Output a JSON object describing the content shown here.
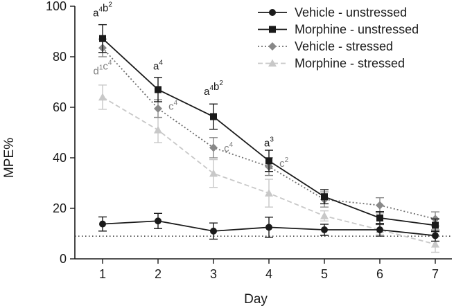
{
  "chart_data": {
    "type": "line",
    "title": "",
    "xlabel": "Day",
    "ylabel": "MPE%",
    "x": [
      1,
      2,
      3,
      4,
      5,
      6,
      7
    ],
    "xlim": [
      0.5,
      7.3
    ],
    "ylim": [
      0,
      100
    ],
    "yticks": [
      0,
      20,
      40,
      60,
      80,
      100
    ],
    "grid": false,
    "legend_position": "top-right",
    "reference_line": {
      "y": 9,
      "style": "dotted",
      "color": "#1a1a1a"
    },
    "series": [
      {
        "name": "Vehicle - unstressed",
        "marker": "circle",
        "dash": "solid",
        "color": "#1a1a1a",
        "marker_color": "#1a1a1a",
        "values": [
          13.8,
          15.0,
          11.0,
          12.5,
          11.5,
          11.5,
          9.2
        ],
        "errors": [
          2.8,
          3.0,
          3.2,
          4.0,
          2.2,
          2.5,
          2.2
        ]
      },
      {
        "name": "Morphine - unstressed",
        "marker": "square",
        "dash": "solid",
        "color": "#1a1a1a",
        "marker_color": "#1a1a1a",
        "values": [
          87.2,
          67.0,
          56.3,
          38.8,
          24.6,
          16.2,
          13.3
        ],
        "errors": [
          5.5,
          4.8,
          5.0,
          4.2,
          2.8,
          2.5,
          2.5
        ]
      },
      {
        "name": "Vehicle - stressed",
        "marker": "diamond",
        "dash": "dotted",
        "color": "#707070",
        "marker_color": "#888888",
        "values": [
          83.5,
          59.5,
          44.0,
          36.5,
          23.5,
          21.2,
          15.8
        ],
        "errors": [
          3.5,
          3.5,
          4.0,
          3.5,
          3.0,
          3.0,
          2.8
        ]
      },
      {
        "name": "Morphine - stressed",
        "marker": "triangle",
        "dash": "dashed",
        "color": "#c8c8c8",
        "marker_color": "#c8c8c8",
        "values": [
          64.0,
          51.0,
          33.8,
          26.0,
          17.0,
          11.5,
          5.8
        ],
        "errors": [
          4.8,
          5.0,
          5.5,
          5.5,
          2.0,
          2.0,
          3.2
        ]
      }
    ],
    "annotations": [
      {
        "x": 1,
        "y": 96,
        "color": "#1a1a1a",
        "parts": [
          [
            "a",
            "4"
          ],
          [
            "b",
            "2"
          ]
        ]
      },
      {
        "x": 2,
        "y": 75,
        "color": "#1a1a1a",
        "parts": [
          [
            "a",
            "4"
          ]
        ]
      },
      {
        "x": 3,
        "y": 65,
        "color": "#1a1a1a",
        "parts": [
          [
            "a",
            "4"
          ],
          [
            "b",
            "2"
          ]
        ]
      },
      {
        "x": 4,
        "y": 44.5,
        "color": "#1a1a1a",
        "parts": [
          [
            "a",
            "3"
          ]
        ]
      },
      {
        "x": 1,
        "y": 73,
        "color": "#808080",
        "parts": [
          [
            "d",
            "1"
          ],
          [
            "c",
            "4"
          ]
        ]
      },
      {
        "x": 2.27,
        "y": 59,
        "color": "#808080",
        "parts": [
          [
            "c",
            "4"
          ]
        ]
      },
      {
        "x": 3.27,
        "y": 42.5,
        "color": "#808080",
        "parts": [
          [
            "c",
            "4"
          ]
        ]
      },
      {
        "x": 4.27,
        "y": 36.5,
        "color": "#808080",
        "parts": [
          [
            "c",
            "2"
          ]
        ]
      }
    ]
  }
}
